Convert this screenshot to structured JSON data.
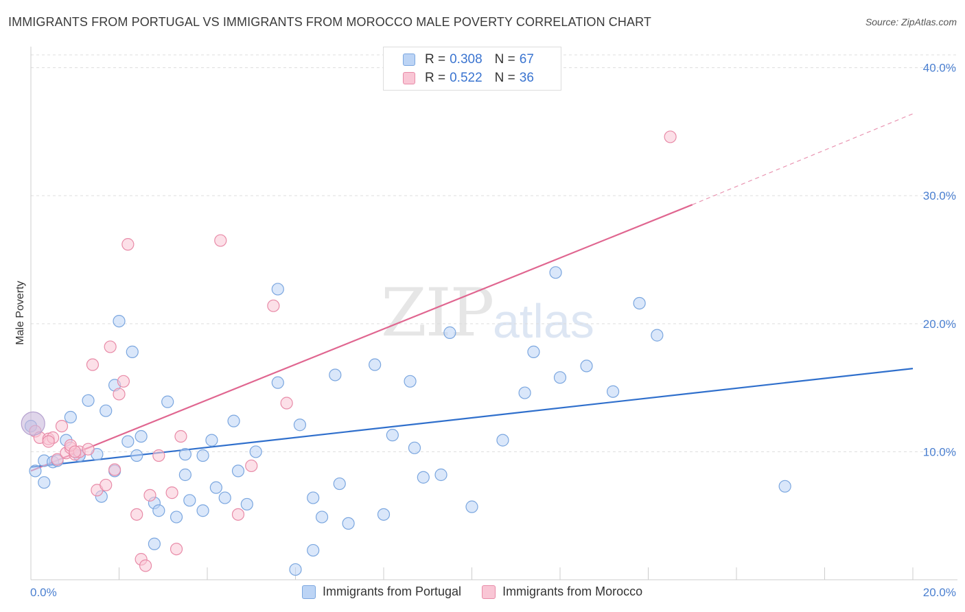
{
  "title": "IMMIGRANTS FROM PORTUGAL VS IMMIGRANTS FROM MOROCCO MALE POVERTY CORRELATION CHART",
  "source": "Source: ZipAtlas.com",
  "watermark": {
    "zip": "ZIP",
    "atlas": "atlas"
  },
  "legend": {
    "rows": [
      {
        "r_label": "R =",
        "r_value": "0.308",
        "n_label": "N =",
        "n_value": "67"
      },
      {
        "r_label": "R =",
        "r_value": "0.522",
        "n_label": "N =",
        "n_value": "36"
      }
    ]
  },
  "bottom_legend": [
    "Immigrants from Portugal",
    "Immigrants from Morocco"
  ],
  "colors": {
    "portugal_fill": "#bcd4f5",
    "portugal_stroke": "#7aa6df",
    "portugal_line": "#2f6fcc",
    "morocco_fill": "#f9c6d5",
    "morocco_stroke": "#e88aa7",
    "morocco_line": "#e06690",
    "tick_text": "#4a7fd0",
    "grid": "#dddddd"
  },
  "chart_data": {
    "type": "scatter",
    "title": "IMMIGRANTS FROM PORTUGAL VS IMMIGRANTS FROM MOROCCO MALE POVERTY CORRELATION CHART",
    "xlabel": "",
    "ylabel": "Male Poverty",
    "xlim": [
      0,
      20
    ],
    "ylim": [
      0,
      41
    ],
    "x_tick_labels": [
      "0.0%",
      "20.0%"
    ],
    "y_ticks": [
      10,
      20,
      30,
      40
    ],
    "y_tick_labels": [
      "10.0%",
      "20.0%",
      "30.0%",
      "40.0%"
    ],
    "grid": true,
    "series": [
      {
        "name": "Immigrants from Portugal",
        "R": 0.308,
        "N": 67,
        "trend": {
          "x0": 0,
          "y0": 8.8,
          "x1": 20,
          "y1": 16.5
        },
        "points": [
          [
            0.1,
            8.5
          ],
          [
            0.3,
            7.6
          ],
          [
            0.3,
            9.3
          ],
          [
            0.5,
            9.2
          ],
          [
            0.8,
            10.9
          ],
          [
            0.9,
            12.7
          ],
          [
            1.1,
            9.7
          ],
          [
            1.3,
            14.0
          ],
          [
            1.5,
            9.8
          ],
          [
            1.6,
            6.5
          ],
          [
            1.7,
            13.2
          ],
          [
            1.9,
            8.5
          ],
          [
            1.9,
            15.2
          ],
          [
            2.0,
            20.2
          ],
          [
            2.2,
            10.8
          ],
          [
            2.3,
            17.8
          ],
          [
            2.4,
            9.7
          ],
          [
            2.5,
            11.2
          ],
          [
            2.8,
            6.0
          ],
          [
            2.9,
            5.4
          ],
          [
            3.1,
            13.9
          ],
          [
            3.3,
            4.9
          ],
          [
            3.5,
            8.2
          ],
          [
            3.5,
            9.8
          ],
          [
            3.6,
            6.2
          ],
          [
            3.9,
            9.7
          ],
          [
            3.9,
            5.4
          ],
          [
            4.1,
            10.9
          ],
          [
            4.2,
            7.2
          ],
          [
            4.4,
            6.4
          ],
          [
            4.6,
            12.4
          ],
          [
            4.7,
            8.5
          ],
          [
            4.9,
            5.9
          ],
          [
            5.1,
            10.0
          ],
          [
            5.6,
            22.7
          ],
          [
            5.6,
            15.4
          ],
          [
            6.1,
            12.1
          ],
          [
            6.4,
            6.4
          ],
          [
            6.6,
            4.9
          ],
          [
            6.9,
            16.0
          ],
          [
            7.0,
            7.5
          ],
          [
            7.2,
            4.4
          ],
          [
            7.8,
            16.8
          ],
          [
            8.0,
            5.1
          ],
          [
            8.2,
            11.3
          ],
          [
            8.6,
            15.5
          ],
          [
            8.7,
            10.3
          ],
          [
            8.9,
            8.0
          ],
          [
            9.3,
            8.2
          ],
          [
            9.5,
            19.3
          ],
          [
            10.0,
            5.7
          ],
          [
            10.7,
            10.9
          ],
          [
            11.2,
            14.6
          ],
          [
            11.4,
            17.8
          ],
          [
            11.9,
            24.0
          ],
          [
            12.0,
            15.8
          ],
          [
            12.6,
            16.7
          ],
          [
            13.2,
            14.7
          ],
          [
            13.8,
            21.6
          ],
          [
            14.2,
            19.1
          ],
          [
            17.1,
            7.3
          ],
          [
            1.1,
            9.7
          ],
          [
            0.6,
            9.3
          ],
          [
            2.8,
            2.8
          ],
          [
            6.4,
            2.3
          ],
          [
            6.0,
            0.8
          ],
          [
            0.0,
            12.0
          ]
        ]
      },
      {
        "name": "Immigrants from Morocco",
        "R": 0.522,
        "N": 36,
        "trend": {
          "x0": 0,
          "y0": 8.5,
          "x1": 15,
          "y1": 29.3
        },
        "trend_extension": {
          "x0": 15,
          "y0": 29.3,
          "x1": 20,
          "y1": 36.4
        },
        "points": [
          [
            0.1,
            11.6
          ],
          [
            0.2,
            11.1
          ],
          [
            0.4,
            11.0
          ],
          [
            0.5,
            11.1
          ],
          [
            0.6,
            9.4
          ],
          [
            0.7,
            12.0
          ],
          [
            0.8,
            9.9
          ],
          [
            0.9,
            10.3
          ],
          [
            1.0,
            9.8
          ],
          [
            1.1,
            10.0
          ],
          [
            1.3,
            10.2
          ],
          [
            1.4,
            16.8
          ],
          [
            1.5,
            7.0
          ],
          [
            1.7,
            7.4
          ],
          [
            1.8,
            18.2
          ],
          [
            1.9,
            8.6
          ],
          [
            2.0,
            14.5
          ],
          [
            2.1,
            15.5
          ],
          [
            2.2,
            26.2
          ],
          [
            2.4,
            5.1
          ],
          [
            2.5,
            1.6
          ],
          [
            2.6,
            1.1
          ],
          [
            2.7,
            6.6
          ],
          [
            2.9,
            9.7
          ],
          [
            3.2,
            6.8
          ],
          [
            3.3,
            2.4
          ],
          [
            3.4,
            11.2
          ],
          [
            4.3,
            26.5
          ],
          [
            4.7,
            5.1
          ],
          [
            5.0,
            8.9
          ],
          [
            5.5,
            21.4
          ],
          [
            5.8,
            13.8
          ],
          [
            14.5,
            34.6
          ],
          [
            0.4,
            10.8
          ],
          [
            0.9,
            10.5
          ],
          [
            1.0,
            10.0
          ]
        ]
      }
    ]
  }
}
